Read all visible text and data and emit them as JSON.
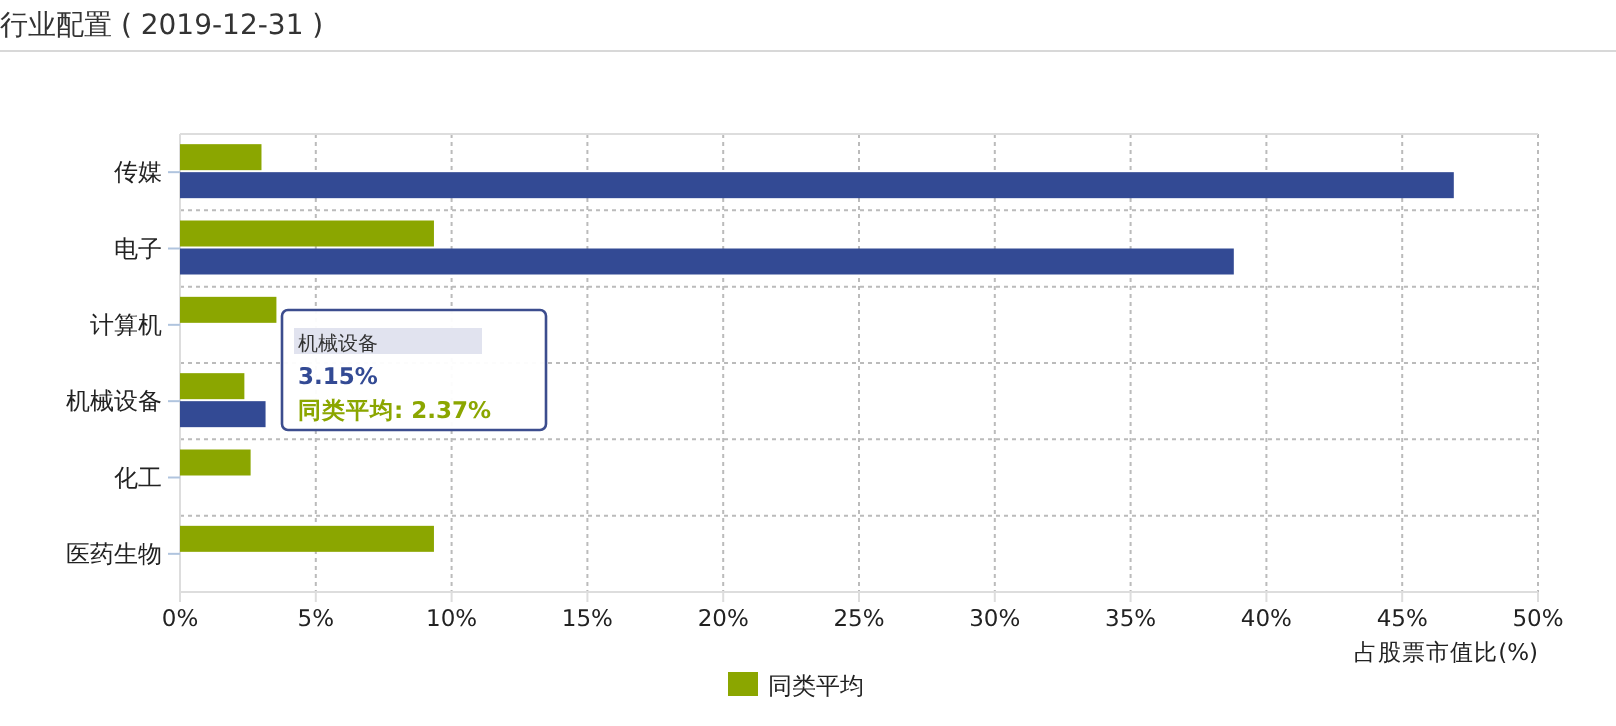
{
  "chart_data": {
    "type": "bar",
    "orientation": "horizontal",
    "title": "行业配置 ( 2019-12-31 )",
    "xlabel": "占股票市值比(%)",
    "categories": [
      "传媒",
      "电子",
      "计算机",
      "机械设备",
      "化工",
      "医药生物"
    ],
    "series": [
      {
        "name": "同类平均",
        "color": "#8ba600",
        "values": [
          3.0,
          9.35,
          3.55,
          2.37,
          2.6,
          9.35
        ]
      },
      {
        "color": "#334a94",
        "values": [
          46.9,
          38.8,
          null,
          3.15,
          null,
          null
        ]
      }
    ],
    "xlim": [
      0,
      50
    ],
    "xticks": [
      {
        "value": 0,
        "label": "0%"
      },
      {
        "value": 5,
        "label": "5%"
      },
      {
        "value": 10,
        "label": "10%"
      },
      {
        "value": 15,
        "label": "15%"
      },
      {
        "value": 20,
        "label": "20%"
      },
      {
        "value": 25,
        "label": "25%"
      },
      {
        "value": 30,
        "label": "30%"
      },
      {
        "value": 35,
        "label": "35%"
      },
      {
        "value": 40,
        "label": "40%"
      },
      {
        "value": 45,
        "label": "45%"
      },
      {
        "value": 50,
        "label": "50%"
      }
    ],
    "grid": true,
    "legend": "bottom",
    "annotations": [
      "机械设备",
      "3.15%",
      "同类平均: 2.37%"
    ]
  }
}
